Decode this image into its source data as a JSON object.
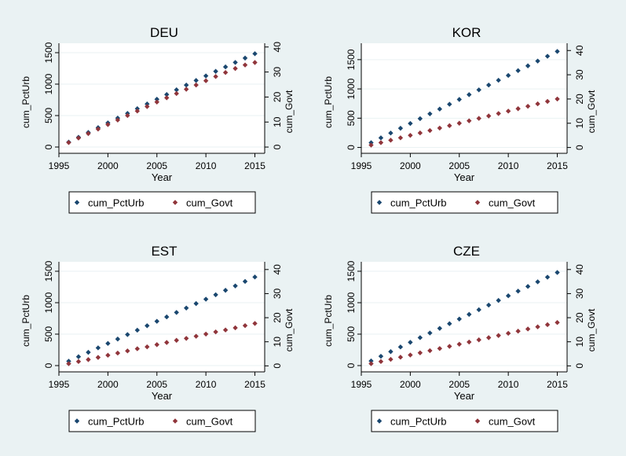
{
  "chart_data": [
    {
      "type": "scatter",
      "title": "DEU",
      "xlabel": "Year",
      "ylabel_left": "cum_PctUrb",
      "ylabel_right": "cum_Govt",
      "x": [
        1996,
        1997,
        1998,
        1999,
        2000,
        2001,
        2002,
        2003,
        2004,
        2005,
        2006,
        2007,
        2008,
        2009,
        2010,
        2011,
        2012,
        2013,
        2014,
        2015
      ],
      "xticks": [
        1995,
        2000,
        2005,
        2010,
        2015
      ],
      "xlim": [
        1995,
        2016
      ],
      "ylim_left": [
        -100,
        1650
      ],
      "yticks_left": [
        0,
        500,
        1000,
        1500
      ],
      "ylim_right": [
        -2.5,
        41.5
      ],
      "yticks_right": [
        0,
        10,
        20,
        30,
        40
      ],
      "series": [
        {
          "name": "cum_PctUrb",
          "axis": "left",
          "color": "#1a476f",
          "values": [
            78,
            155,
            232,
            308,
            384,
            460,
            535,
            610,
            685,
            760,
            835,
            910,
            985,
            1058,
            1131,
            1203,
            1274,
            1345,
            1414,
            1483
          ]
        },
        {
          "name": "cum_Govt",
          "axis": "right",
          "color": "#90353b",
          "values": [
            1.8,
            3.6,
            5.4,
            7.2,
            9.0,
            10.8,
            12.6,
            14.4,
            16.2,
            18.0,
            19.7,
            21.4,
            23.1,
            24.8,
            26.5,
            28.2,
            29.8,
            31.4,
            32.8,
            33.8
          ]
        }
      ],
      "legend": [
        "cum_PctUrb",
        "cum_Govt"
      ],
      "legend_position": "bottom"
    },
    {
      "type": "scatter",
      "title": "KOR",
      "xlabel": "Year",
      "ylabel_left": "cum_PctUrb",
      "ylabel_right": "cum_Govt",
      "x": [
        1996,
        1997,
        1998,
        1999,
        2000,
        2001,
        2002,
        2003,
        2004,
        2005,
        2006,
        2007,
        2008,
        2009,
        2010,
        2011,
        2012,
        2013,
        2014,
        2015
      ],
      "xticks": [
        1995,
        2000,
        2005,
        2010,
        2015
      ],
      "xlim": [
        1995,
        2016
      ],
      "ylim_left": [
        -100,
        1780
      ],
      "yticks_left": [
        0,
        500,
        1000,
        1500
      ],
      "ylim_right": [
        -2.4,
        43
      ],
      "yticks_right": [
        0,
        10,
        20,
        30,
        40
      ],
      "series": [
        {
          "name": "cum_PctUrb",
          "axis": "left",
          "color": "#1a476f",
          "values": [
            82,
            164,
            246,
            328,
            410,
            492,
            574,
            656,
            738,
            820,
            902,
            984,
            1066,
            1148,
            1230,
            1312,
            1394,
            1476,
            1558,
            1640
          ]
        },
        {
          "name": "cum_Govt",
          "axis": "right",
          "color": "#90353b",
          "values": [
            1.0,
            2.0,
            3.0,
            4.0,
            5.0,
            6.0,
            7.0,
            8.0,
            9.0,
            10.0,
            11.0,
            12.0,
            13.0,
            14.0,
            15.0,
            16.0,
            17.0,
            18.0,
            19.0,
            20.0
          ]
        }
      ],
      "legend": [
        "cum_PctUrb",
        "cum_Govt"
      ],
      "legend_position": "bottom"
    },
    {
      "type": "scatter",
      "title": "EST",
      "xlabel": "Year",
      "ylabel_left": "cum_PctUrb",
      "ylabel_right": "cum_Govt",
      "x": [
        1996,
        1997,
        1998,
        1999,
        2000,
        2001,
        2002,
        2003,
        2004,
        2005,
        2006,
        2007,
        2008,
        2009,
        2010,
        2011,
        2012,
        2013,
        2014,
        2015
      ],
      "xticks": [
        1995,
        2000,
        2005,
        2010,
        2015
      ],
      "xlim": [
        1995,
        2016
      ],
      "ylim_left": [
        -100,
        1650
      ],
      "yticks_left": [
        0,
        500,
        1000,
        1500
      ],
      "ylim_right": [
        -2.5,
        43.2
      ],
      "yticks_right": [
        0,
        10,
        20,
        30,
        40
      ],
      "series": [
        {
          "name": "cum_PctUrb",
          "axis": "left",
          "color": "#1a476f",
          "values": [
            70,
            141,
            211,
            282,
            352,
            422,
            493,
            563,
            634,
            704,
            774,
            845,
            915,
            986,
            1056,
            1126,
            1197,
            1267,
            1338,
            1408
          ]
        },
        {
          "name": "cum_Govt",
          "axis": "right",
          "color": "#90353b",
          "values": [
            0.9,
            1.8,
            2.6,
            3.5,
            4.4,
            5.3,
            6.2,
            7.1,
            7.9,
            8.8,
            9.7,
            10.6,
            11.4,
            12.3,
            13.2,
            14.1,
            14.9,
            15.8,
            16.7,
            17.6
          ]
        }
      ],
      "legend": [
        "cum_PctUrb",
        "cum_Govt"
      ],
      "legend_position": "bottom"
    },
    {
      "type": "scatter",
      "title": "CZE",
      "xlabel": "Year",
      "ylabel_left": "cum_PctUrb",
      "ylabel_right": "cum_Govt",
      "x": [
        1996,
        1997,
        1998,
        1999,
        2000,
        2001,
        2002,
        2003,
        2004,
        2005,
        2006,
        2007,
        2008,
        2009,
        2010,
        2011,
        2012,
        2013,
        2014,
        2015
      ],
      "xticks": [
        1995,
        2000,
        2005,
        2010,
        2015
      ],
      "xlim": [
        1995,
        2016
      ],
      "ylim_left": [
        -100,
        1650
      ],
      "yticks_left": [
        0,
        500,
        1000,
        1500
      ],
      "ylim_right": [
        -2.5,
        43.2
      ],
      "yticks_right": [
        0,
        10,
        20,
        30,
        40
      ],
      "series": [
        {
          "name": "cum_PctUrb",
          "axis": "left",
          "color": "#1a476f",
          "values": [
            74,
            148,
            222,
            296,
            370,
            444,
            518,
            592,
            666,
            740,
            814,
            888,
            962,
            1036,
            1110,
            1184,
            1258,
            1332,
            1406,
            1480
          ]
        },
        {
          "name": "cum_Govt",
          "axis": "right",
          "color": "#90353b",
          "values": [
            0.9,
            1.8,
            2.7,
            3.6,
            4.5,
            5.4,
            6.3,
            7.2,
            8.1,
            9.0,
            9.9,
            10.8,
            11.7,
            12.6,
            13.5,
            14.4,
            15.3,
            16.2,
            17.1,
            18.0
          ]
        }
      ],
      "legend": [
        "cum_PctUrb",
        "cum_Govt"
      ],
      "legend_position": "bottom"
    }
  ]
}
